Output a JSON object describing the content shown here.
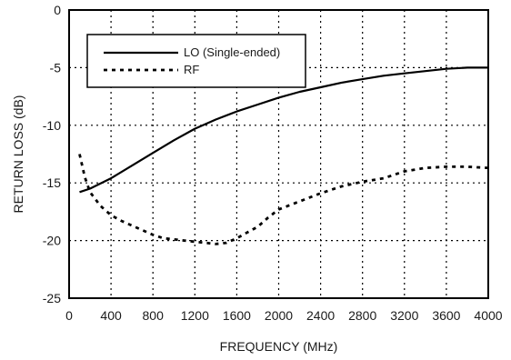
{
  "chart_data": {
    "type": "line",
    "xlabel": "FREQUENCY (MHz)",
    "ylabel": "RETURN LOSS (dB)",
    "xlim": [
      0,
      4000
    ],
    "ylim": [
      -25,
      0
    ],
    "xticks": [
      0,
      400,
      800,
      1200,
      1600,
      2000,
      2400,
      2800,
      3200,
      3600,
      4000
    ],
    "yticks": [
      0,
      -5,
      -10,
      -15,
      -20,
      -25
    ],
    "grid": true,
    "legend_position": "top-left",
    "series": [
      {
        "name": "LO (Single-ended)",
        "style": "solid",
        "color": "#000000",
        "x": [
          100,
          200,
          400,
          600,
          800,
          1000,
          1200,
          1400,
          1600,
          1800,
          2000,
          2200,
          2400,
          2600,
          2800,
          3000,
          3200,
          3400,
          3600,
          3800,
          4000
        ],
        "y": [
          -15.8,
          -15.5,
          -14.6,
          -13.5,
          -12.4,
          -11.3,
          -10.3,
          -9.5,
          -8.8,
          -8.2,
          -7.6,
          -7.1,
          -6.7,
          -6.3,
          -6.0,
          -5.7,
          -5.5,
          -5.3,
          -5.1,
          -5.0,
          -5.0
        ]
      },
      {
        "name": "RF",
        "style": "dotted",
        "color": "#000000",
        "x": [
          100,
          150,
          200,
          300,
          400,
          500,
          600,
          700,
          800,
          900,
          1000,
          1100,
          1200,
          1300,
          1400,
          1500,
          1600,
          1700,
          1800,
          1900,
          2000,
          2200,
          2400,
          2600,
          2800,
          3000,
          3200,
          3400,
          3600,
          3800,
          4000
        ],
        "y": [
          -12.5,
          -14.5,
          -15.8,
          -17.0,
          -17.8,
          -18.3,
          -18.7,
          -19.1,
          -19.5,
          -19.8,
          -19.9,
          -20.0,
          -20.1,
          -20.2,
          -20.3,
          -20.2,
          -19.8,
          -19.3,
          -18.8,
          -18.0,
          -17.3,
          -16.6,
          -15.9,
          -15.3,
          -14.9,
          -14.6,
          -14.0,
          -13.7,
          -13.6,
          -13.6,
          -13.7
        ]
      }
    ]
  }
}
